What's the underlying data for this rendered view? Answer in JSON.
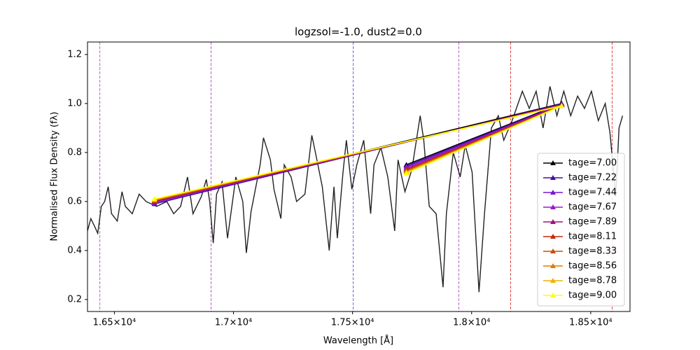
{
  "chart_data": {
    "type": "line",
    "title": "logzsol=-1.0, dust2=0.0",
    "x_label": "Wavelength [Å]",
    "y_label": "Normalised Flux Density (fλ)",
    "xlim": [
      16387,
      18665
    ],
    "ylim": [
      0.151,
      1.251
    ],
    "xticks": [
      {
        "value": 16500,
        "label": "1.65×10⁴"
      },
      {
        "value": 17000,
        "label": "1.7×10⁴"
      },
      {
        "value": 17500,
        "label": "1.75×10⁴"
      },
      {
        "value": 18000,
        "label": "1.8×10⁴"
      },
      {
        "value": 18500,
        "label": "1.85×10⁴"
      }
    ],
    "yticks": [
      0.2,
      0.4,
      0.6,
      0.8,
      {
        "value": 1,
        "label": "1.0"
      },
      1.2
    ],
    "legend_position": "lower right",
    "vlines": [
      {
        "x": 16439,
        "color": "#a040b0"
      },
      {
        "x": 16906,
        "color": "#a040b0"
      },
      {
        "x": 17503,
        "color": "#4040d0"
      },
      {
        "x": 17946,
        "color": "#a040b0"
      },
      {
        "x": 18164,
        "color": "#d02020"
      },
      {
        "x": 18590,
        "color": "#d02020"
      }
    ],
    "spectrum": {
      "color": "#222222",
      "x": [
        16387,
        16401,
        16416,
        16430,
        16445,
        16459,
        16474,
        16488,
        16512,
        16532,
        16546,
        16575,
        16604,
        16633,
        16677,
        16720,
        16749,
        16778,
        16807,
        16830,
        16865,
        16886,
        16900,
        16915,
        16929,
        16952,
        16975,
        17010,
        17039,
        17054,
        17074,
        17112,
        17126,
        17155,
        17170,
        17199,
        17213,
        17242,
        17265,
        17300,
        17329,
        17344,
        17373,
        17402,
        17422,
        17436,
        17460,
        17474,
        17497,
        17518,
        17547,
        17576,
        17590,
        17619,
        17648,
        17677,
        17691,
        17720,
        17749,
        17784,
        17799,
        17822,
        17851,
        17880,
        17894,
        17923,
        17952,
        17973,
        18002,
        18031,
        18054,
        18083,
        18112,
        18135,
        18170,
        18213,
        18242,
        18271,
        18300,
        18329,
        18358,
        18387,
        18416,
        18445,
        18474,
        18503,
        18532,
        18561,
        18581,
        18605,
        18619,
        18634
      ],
      "values": [
        0.48,
        0.53,
        0.5,
        0.47,
        0.58,
        0.6,
        0.66,
        0.55,
        0.52,
        0.64,
        0.58,
        0.55,
        0.63,
        0.6,
        0.58,
        0.6,
        0.55,
        0.58,
        0.7,
        0.55,
        0.62,
        0.69,
        0.6,
        0.43,
        0.63,
        0.68,
        0.45,
        0.7,
        0.6,
        0.39,
        0.56,
        0.75,
        0.86,
        0.77,
        0.65,
        0.53,
        0.75,
        0.7,
        0.6,
        0.63,
        0.87,
        0.8,
        0.66,
        0.4,
        0.66,
        0.45,
        0.72,
        0.85,
        0.65,
        0.75,
        0.85,
        0.55,
        0.75,
        0.82,
        0.7,
        0.48,
        0.77,
        0.64,
        0.73,
        0.95,
        0.85,
        0.58,
        0.55,
        0.25,
        0.55,
        0.8,
        0.7,
        0.83,
        0.72,
        0.23,
        0.55,
        0.9,
        0.95,
        0.85,
        0.93,
        1.05,
        0.98,
        1.05,
        0.9,
        1.07,
        0.95,
        1.05,
        0.95,
        1.03,
        0.98,
        1.05,
        0.93,
        1.0,
        0.88,
        0.62,
        0.9,
        0.95
      ]
    },
    "x": [
      17726,
      18378,
      16668
    ],
    "series": [
      {
        "name": "tage=7.00",
        "color": "#000000",
        "values": [
          0.75,
          1.0,
          0.6
        ]
      },
      {
        "name": "tage=7.22",
        "color": "#4b0a9e",
        "values": [
          0.745,
          0.998,
          0.59
        ]
      },
      {
        "name": "tage=7.44",
        "color": "#7a14d8",
        "values": [
          0.74,
          0.996,
          0.595
        ]
      },
      {
        "name": "tage=7.67",
        "color": "#9a18d0",
        "values": [
          0.735,
          0.995,
          0.597
        ]
      },
      {
        "name": "tage=7.89",
        "color": "#a0127a",
        "values": [
          0.73,
          0.994,
          0.6
        ]
      },
      {
        "name": "tage=8.11",
        "color": "#c02a0a",
        "values": [
          0.73,
          0.993,
          0.602
        ]
      },
      {
        "name": "tage=8.33",
        "color": "#d04a00",
        "values": [
          0.725,
          0.992,
          0.604
        ]
      },
      {
        "name": "tage=8.56",
        "color": "#e07a00",
        "values": [
          0.72,
          0.991,
          0.606
        ]
      },
      {
        "name": "tage=8.78",
        "color": "#f0b000",
        "values": [
          0.72,
          0.99,
          0.608
        ]
      },
      {
        "name": "tage=9.00",
        "color": "#ffff00",
        "values": [
          0.715,
          0.99,
          0.61
        ]
      }
    ]
  }
}
